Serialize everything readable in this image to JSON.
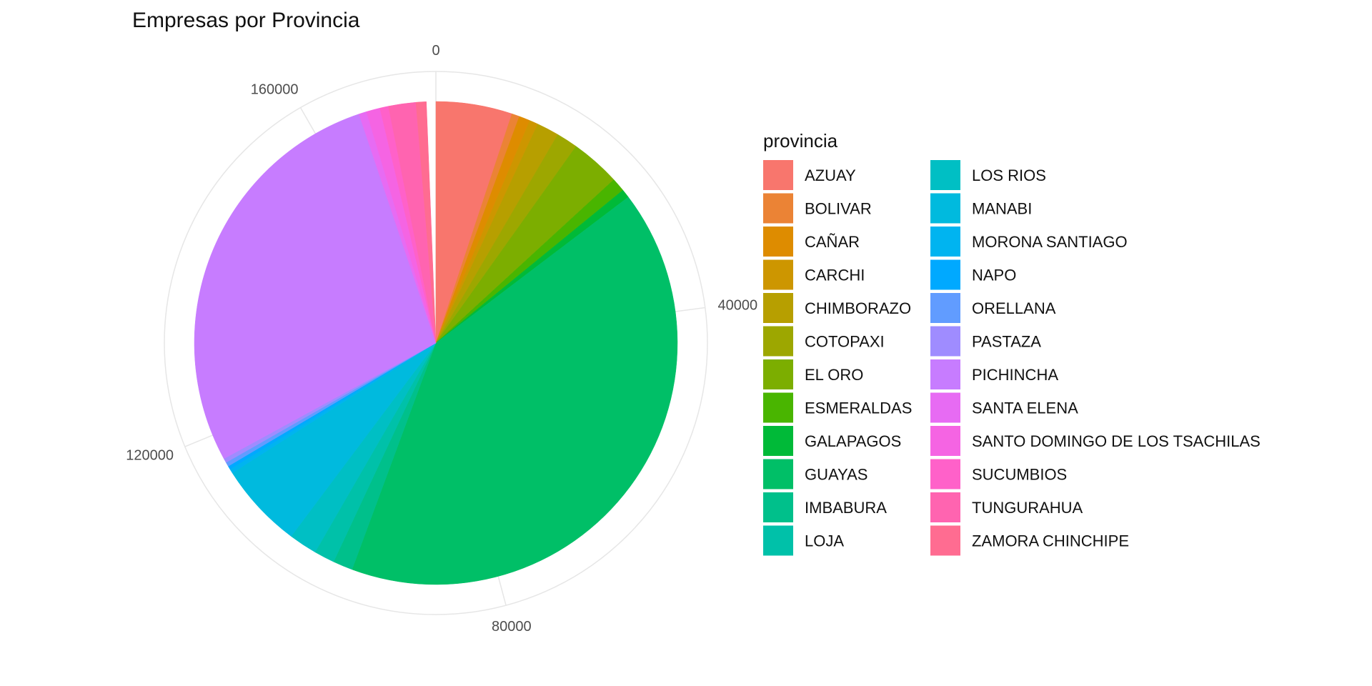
{
  "chart_data": {
    "type": "pie",
    "title": "Empresas por Provincia",
    "legend_title": "provincia",
    "legend_position": "right",
    "axis_ticks": [
      "0",
      "40000",
      "80000",
      "120000",
      "160000"
    ],
    "axis_tick_values": [
      0,
      40000,
      80000,
      120000,
      160000
    ],
    "total": 174500,
    "grid": true,
    "categories": [
      "AZUAY",
      "BOLIVAR",
      "CAÑAR",
      "CARCHI",
      "CHIMBORAZO",
      "COTOPAXI",
      "EL ORO",
      "ESMERALDAS",
      "GALAPAGOS",
      "GUAYAS",
      "IMBABURA",
      "LOJA",
      "LOS RIOS",
      "MANABI",
      "MORONA SANTIAGO",
      "NAPO",
      "ORELLANA",
      "PASTAZA",
      "PICHINCHA",
      "SANTA ELENA",
      "SANTO DOMINGO DE LOS TSACHILAS",
      "SUCUMBIOS",
      "TUNGURAHUA",
      "ZAMORA CHINCHIPE"
    ],
    "values": [
      8900,
      900,
      1300,
      1000,
      2600,
      2500,
      5800,
      1600,
      1000,
      71500,
      2300,
      2400,
      3300,
      10000,
      500,
      400,
      500,
      500,
      48500,
      900,
      1600,
      1000,
      3200,
      1200
    ],
    "colors": [
      "#F8766D",
      "#EB8335",
      "#DE8C00",
      "#CD9600",
      "#B79F00",
      "#9DA700",
      "#7CAE00",
      "#49B500",
      "#00BA38",
      "#00BF67",
      "#00C08B",
      "#00C1A9",
      "#00BFC4",
      "#00BADE",
      "#00B4F0",
      "#00A9FF",
      "#619CFF",
      "#9F8CFF",
      "#C77CFF",
      "#E76BF3",
      "#F564E3",
      "#FF61C9",
      "#FF64B0",
      "#FF6C91"
    ]
  }
}
